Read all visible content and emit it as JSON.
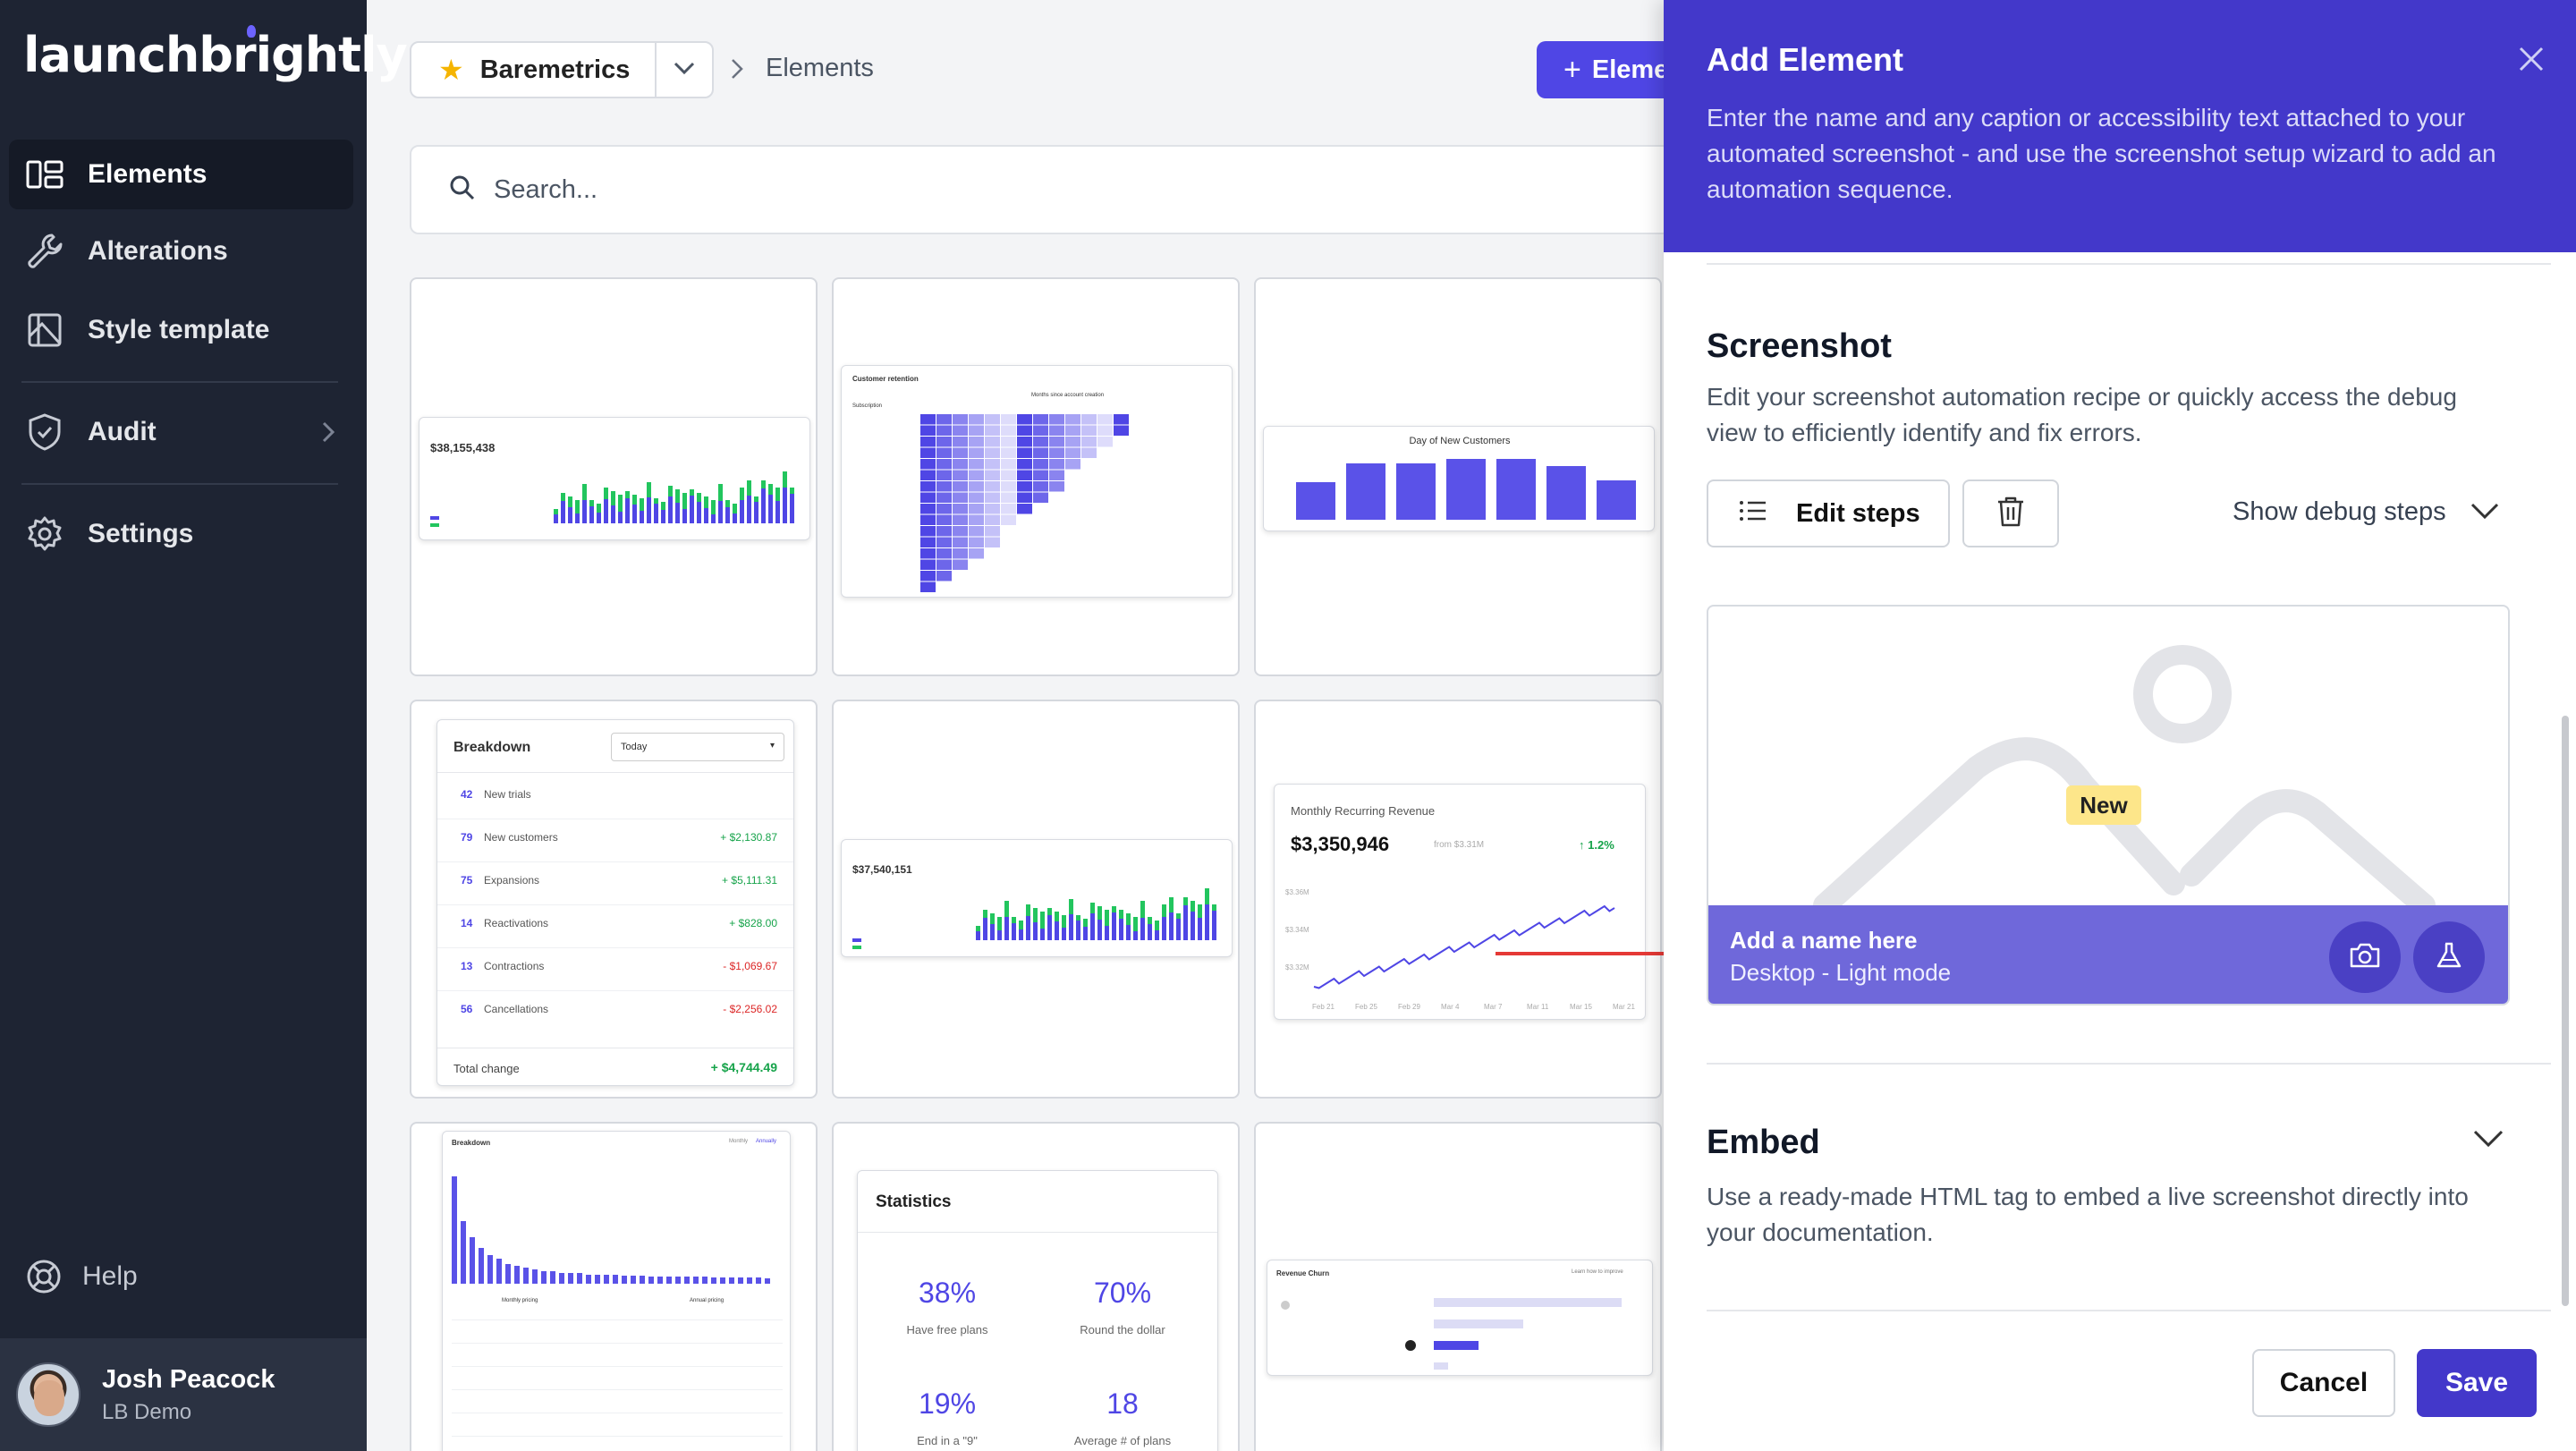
{
  "app": {
    "logo_text": "launchbrightly"
  },
  "sidebar": {
    "items": [
      {
        "label": "Elements",
        "icon": "elements-icon"
      },
      {
        "label": "Alterations",
        "icon": "wrench-icon"
      },
      {
        "label": "Style template",
        "icon": "style-icon"
      },
      {
        "label": "Audit",
        "icon": "shield-icon"
      },
      {
        "label": "Settings",
        "icon": "gear-icon"
      }
    ],
    "help_label": "Help",
    "user": {
      "name": "Josh Peacock",
      "org": "LB Demo"
    }
  },
  "header": {
    "project": "Baremetrics",
    "breadcrumb": "Elements",
    "add_button": "Element"
  },
  "search": {
    "placeholder": "Search..."
  },
  "thumbnails": {
    "revenue_value": "$38,155,438",
    "retention_title": "Customer retention",
    "retention_subtitle": "Months since account creation",
    "retention_col": "Subscription",
    "new_customers_title": "Day of New Customers",
    "new_customers_values": [
      0.42,
      0.63,
      0.63,
      0.68,
      0.68,
      0.6,
      0.44
    ],
    "breakdown": {
      "title": "Breakdown",
      "period": "Today",
      "rows": [
        {
          "count": "42",
          "label": "New trials",
          "value": ""
        },
        {
          "count": "79",
          "label": "New customers",
          "value": "+ $2,130.87"
        },
        {
          "count": "75",
          "label": "Expansions",
          "value": "+ $5,111.31"
        },
        {
          "count": "14",
          "label": "Reactivations",
          "value": "+ $828.00"
        },
        {
          "count": "13",
          "label": "Contractions",
          "value": "- $1,069.67"
        },
        {
          "count": "56",
          "label": "Cancellations",
          "value": "- $2,256.02"
        }
      ],
      "total_label": "Total change",
      "total_value": "+ $4,744.49"
    },
    "revenue2_value": "$37,540,151",
    "mrr": {
      "title": "Monthly Recurring Revenue",
      "value": "$3,350,946",
      "from": "from $3.31M",
      "change": "1.2%",
      "y_ticks": [
        "$3.36M",
        "$3.34M",
        "$3.32M"
      ],
      "x_ticks": [
        "Feb 21",
        "Feb 25",
        "Feb 29",
        "Mar 4",
        "Mar 7",
        "Mar 11",
        "Mar 15",
        "Mar 21"
      ]
    },
    "breakdown2_title": "Breakdown",
    "breakdown2_tabs": [
      "Monthly",
      "Annually"
    ],
    "breakdown2_cols": [
      "Monthly pricing",
      "Annual pricing"
    ],
    "statistics": {
      "title": "Statistics",
      "items": [
        {
          "value": "38%",
          "label": "Have free plans"
        },
        {
          "value": "70%",
          "label": "Round the dollar"
        },
        {
          "value": "19%",
          "label": "End in a \"9\""
        },
        {
          "value": "18",
          "label": "Average # of plans"
        }
      ]
    },
    "churn_title": "Revenue Churn",
    "churn_link": "Learn how to improve"
  },
  "drawer": {
    "title": "Add Element",
    "description": "Enter the name and any caption or accessibility text attached to your automated screenshot - and use the screenshot setup wizard to add an automation sequence.",
    "screenshot": {
      "title": "Screenshot",
      "description": "Edit your screenshot automation recipe or quickly access the debug view to efficiently identify and fix errors.",
      "edit_steps": "Edit steps",
      "show_debug": "Show debug steps",
      "badge": "New",
      "name": "Add a name here",
      "mode": "Desktop - Light mode"
    },
    "embed": {
      "title": "Embed",
      "description": "Use a ready-made HTML tag to embed a live screenshot directly into your documentation."
    },
    "cancel": "Cancel",
    "save": "Save"
  },
  "colors": {
    "accent": "#4338ca",
    "sidebar": "#1e2433",
    "primary_button": "#4f46e5"
  }
}
